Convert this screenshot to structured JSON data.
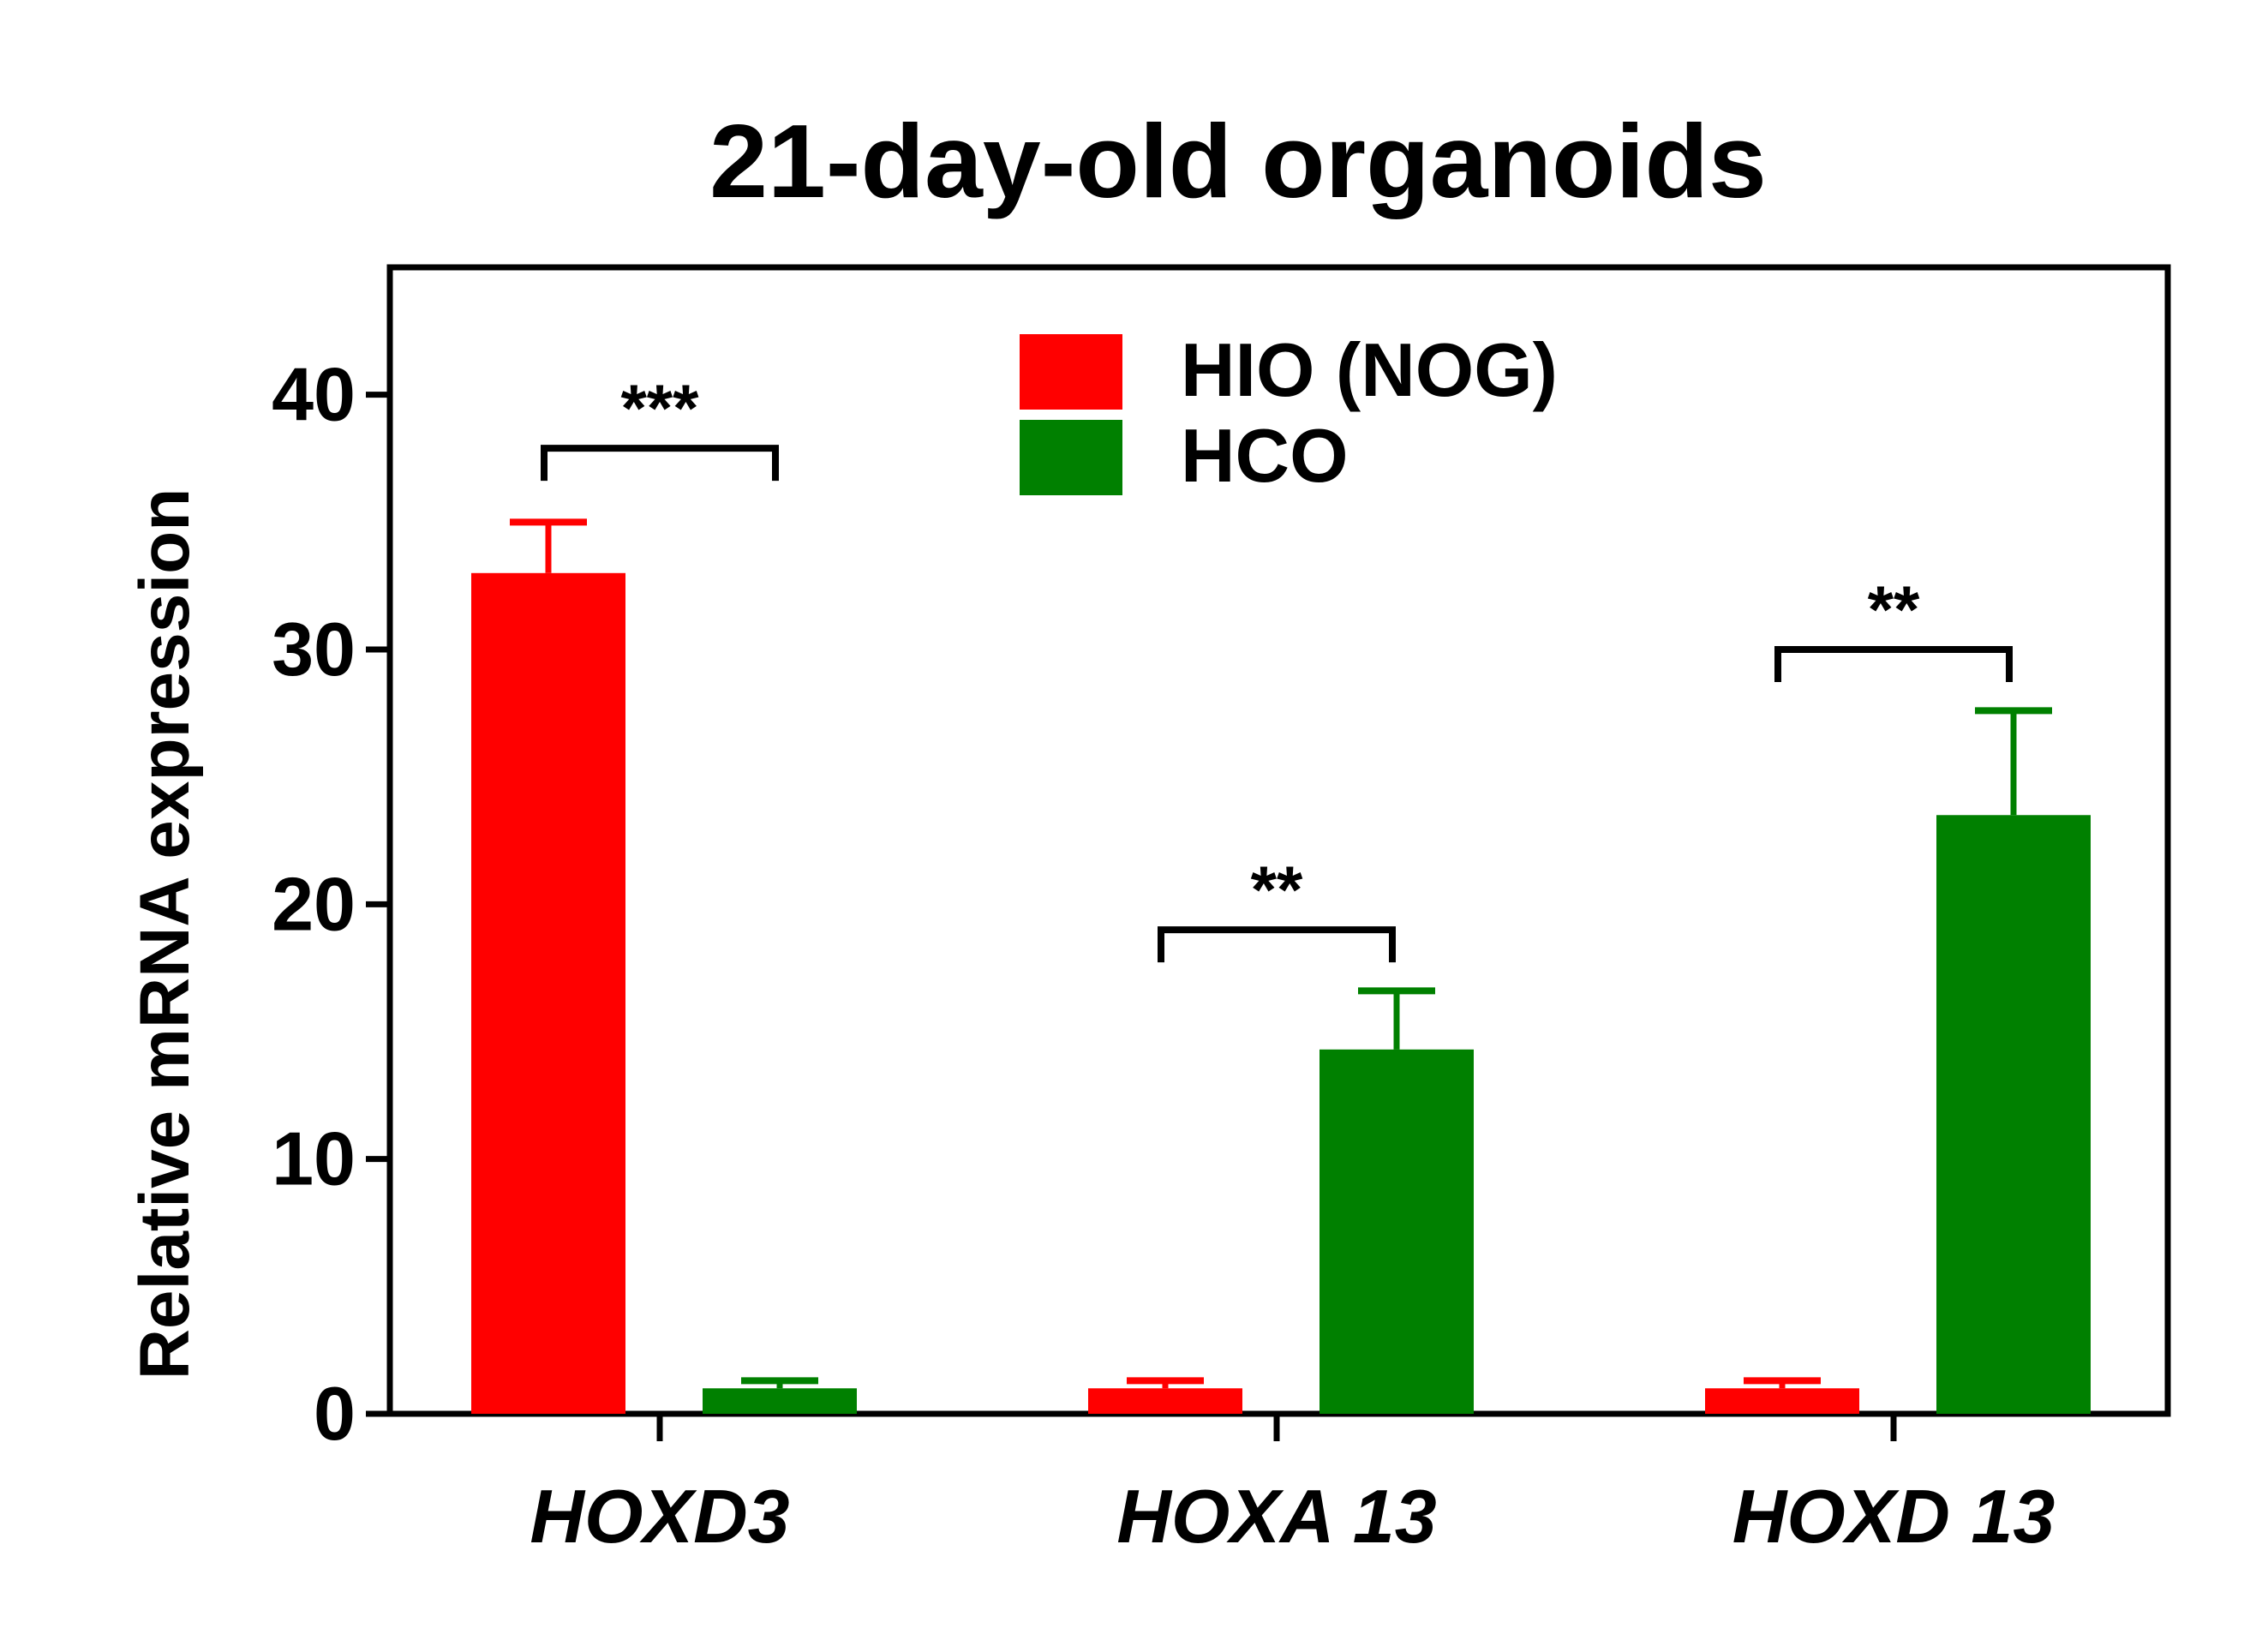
{
  "chart_data": {
    "type": "bar",
    "title": "21-day-old organoids",
    "xlabel": "",
    "ylabel": "Relative mRNA expression",
    "ylim": [
      0,
      45
    ],
    "yticks": [
      0,
      10,
      20,
      30,
      40
    ],
    "categories": [
      "HOXD3",
      "HOXA 13",
      "HOXD 13"
    ],
    "series": [
      {
        "name": "HIO (NOG)",
        "color": "#ff0000",
        "values": [
          33,
          1,
          1
        ],
        "errors": [
          2,
          0.3,
          0.3
        ]
      },
      {
        "name": "HCO",
        "color": "#008000",
        "values": [
          1,
          14.3,
          23.5
        ],
        "errors": [
          0.3,
          2.3,
          4.1
        ]
      }
    ],
    "significance": [
      {
        "category": "HOXD3",
        "label": "***",
        "level": 37.9
      },
      {
        "category": "HOXA 13",
        "label": "**",
        "level": 19
      },
      {
        "category": "HOXD 13",
        "label": "**",
        "level": 30
      }
    ],
    "legend_position": "top-center",
    "grid": false
  }
}
